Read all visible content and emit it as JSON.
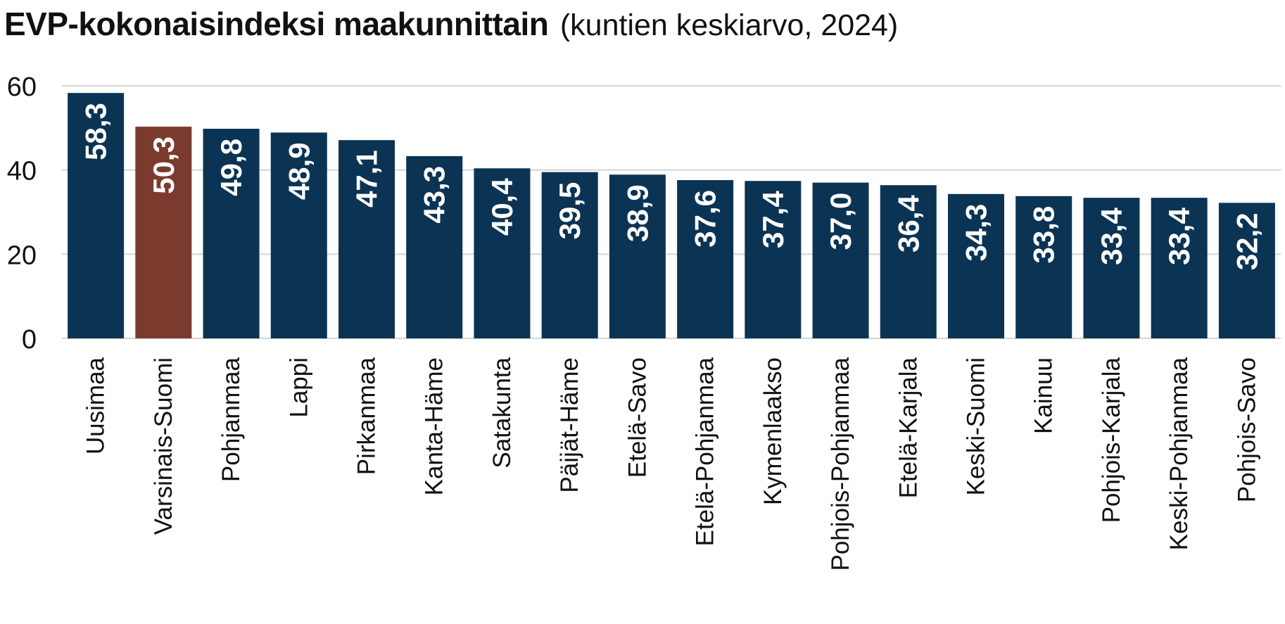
{
  "title": "EVP-kokonaisindeksi maakunnittain",
  "subtitle": "(kuntien keskiarvo, 2024)",
  "colors": {
    "bar_default": "#0b3353",
    "bar_highlight": "#7a3b2e",
    "grid": "#d4d4d4",
    "axis_text": "#111111",
    "bar_label": "#ffffff"
  },
  "chart_data": {
    "type": "bar",
    "title": "EVP-kokonaisindeksi maakunnittain",
    "subtitle": "(kuntien keskiarvo, 2024)",
    "xlabel": "",
    "ylabel": "",
    "ylim": [
      0,
      60
    ],
    "yticks": [
      0,
      20,
      40,
      60
    ],
    "grid": true,
    "highlight_category": "Varsinais-Suomi",
    "categories": [
      "Uusimaa",
      "Varsinais-Suomi",
      "Pohjanmaa",
      "Lappi",
      "Pirkanmaa",
      "Kanta-Häme",
      "Satakunta",
      "Päijät-Häme",
      "Etelä-Savo",
      "Etelä-Pohjanmaa",
      "Kymenlaakso",
      "Pohjois-Pohjanmaa",
      "Etelä-Karjala",
      "Keski-Suomi",
      "Kainuu",
      "Pohjois-Karjala",
      "Keski-Pohjanmaa",
      "Pohjois-Savo"
    ],
    "values": [
      58.3,
      50.3,
      49.8,
      48.9,
      47.1,
      43.3,
      40.4,
      39.5,
      38.9,
      37.6,
      37.4,
      37.0,
      36.4,
      34.3,
      33.8,
      33.4,
      33.4,
      32.2
    ],
    "data_labels": [
      "58,3",
      "50,3",
      "49,8",
      "48,9",
      "47,1",
      "43,3",
      "40,4",
      "39,5",
      "38,9",
      "37,6",
      "37,4",
      "37,0",
      "36,4",
      "34,3",
      "33,8",
      "33,4",
      "33,4",
      "32,2"
    ]
  }
}
